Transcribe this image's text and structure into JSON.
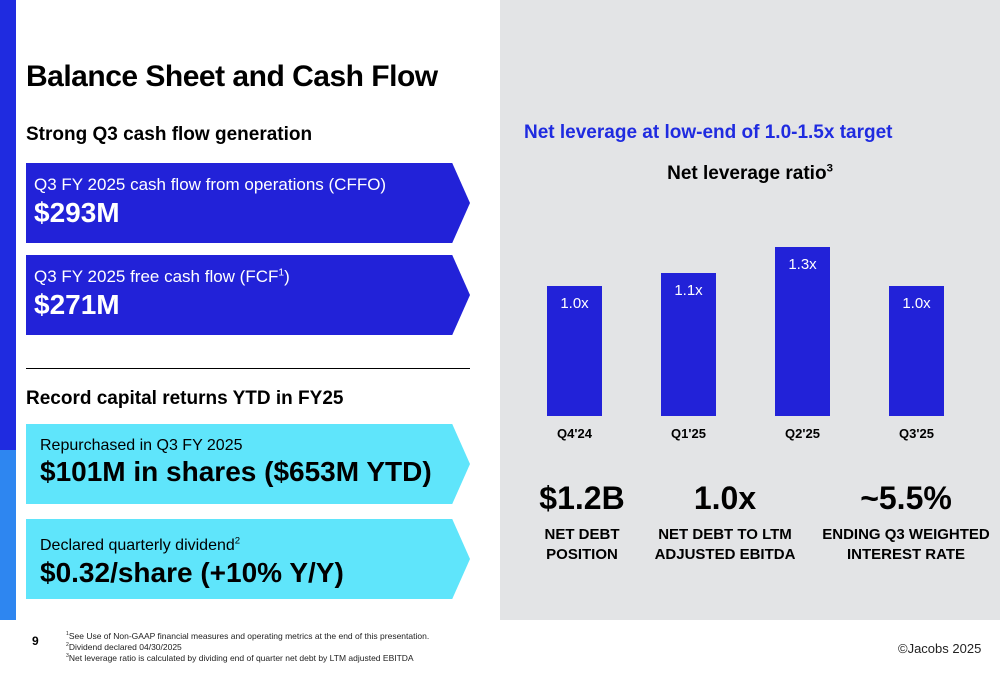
{
  "title": "Balance Sheet and Cash Flow",
  "left": {
    "section1_heading": "Strong Q3 cash flow generation",
    "cffo_label": "Q3 FY 2025 cash flow from operations (CFFO)",
    "cffo_value": "$293M",
    "fcf_label_prefix": "Q3 FY 2025 free cash flow (FCF",
    "fcf_label_sup": "1",
    "fcf_label_suffix": ")",
    "fcf_value": "$271M",
    "section2_heading": "Record capital returns YTD in FY25",
    "repurchase_label": "Repurchased in Q3 FY 2025",
    "repurchase_value": "$101M in shares ($653M YTD)",
    "dividend_label": "Declared quarterly dividend",
    "dividend_label_sup": "2",
    "dividend_value": "$0.32/share (+10% Y/Y)"
  },
  "right": {
    "heading": "Net leverage at low-end of 1.0-1.5x target",
    "stats": [
      {
        "value": "$1.2B",
        "label_line1": "NET DEBT",
        "label_line2": "POSITION"
      },
      {
        "value": "1.0x",
        "label_line1": "NET DEBT TO LTM",
        "label_line2": "ADJUSTED EBITDA"
      },
      {
        "value": "~5.5%",
        "label_line1": "ENDING Q3 WEIGHTED",
        "label_line2": "INTEREST RATE"
      }
    ]
  },
  "chart_data": {
    "type": "bar",
    "title": "Net leverage ratio",
    "title_sup": "3",
    "categories": [
      "Q4'24",
      "Q1'25",
      "Q2'25",
      "Q3'25"
    ],
    "values": [
      1.0,
      1.1,
      1.3,
      1.0
    ],
    "data_labels": [
      "1.0x",
      "1.1x",
      "1.3x",
      "1.0x"
    ],
    "bar_color": "#2222d8",
    "grid": false
  },
  "footer": {
    "page_number": "9",
    "footnotes": [
      {
        "sup": "1",
        "text": "See Use of Non-GAAP financial measures and operating metrics at the end of this presentation."
      },
      {
        "sup": "2",
        "text": "Dividend declared 04/30/2025"
      },
      {
        "sup": "3",
        "text": "Net leverage ratio is calculated by dividing end of quarter net debt by LTM adjusted EBITDA"
      }
    ],
    "copyright": "©Jacobs 2025"
  },
  "colors": {
    "brand_blue": "#1f2be0",
    "dark_arrow": "#2222d8",
    "light_arrow": "#5fe5fb",
    "panel_gray": "#e3e4e6"
  }
}
